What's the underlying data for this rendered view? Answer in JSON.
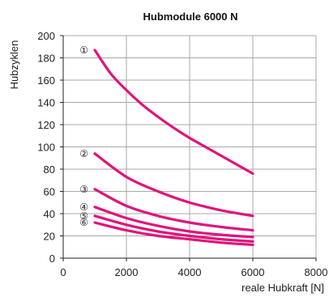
{
  "chart_data": {
    "type": "line",
    "title": "Hubmodule 6000 N",
    "xlabel": "reale Hubkraft [N]",
    "ylabel": "Hubzyklen",
    "xlim": [
      0,
      8000
    ],
    "ylim": [
      0,
      200
    ],
    "xticks": [
      0,
      2000,
      4000,
      6000,
      8000
    ],
    "yticks": [
      0,
      20,
      40,
      60,
      80,
      100,
      120,
      140,
      160,
      180,
      200
    ],
    "grid": true,
    "line_color": "#e0147c",
    "series": [
      {
        "name": "①",
        "x": [
          1000,
          1500,
          2000,
          2500,
          3000,
          3500,
          4000,
          4500,
          5000,
          5500,
          6000
        ],
        "values": [
          187,
          166,
          151,
          138,
          127,
          117,
          108,
          100,
          92,
          84,
          76
        ]
      },
      {
        "name": "②",
        "x": [
          1000,
          2000,
          3000,
          4000,
          5000,
          6000
        ],
        "values": [
          94,
          73,
          60,
          50,
          43,
          38
        ]
      },
      {
        "name": "③",
        "x": [
          1000,
          2000,
          3000,
          4000,
          5000,
          6000
        ],
        "values": [
          62,
          47,
          38,
          32,
          28,
          25
        ]
      },
      {
        "name": "④",
        "x": [
          1000,
          2000,
          3000,
          4000,
          5000,
          6000
        ],
        "values": [
          46,
          36,
          29,
          24,
          21,
          19
        ]
      },
      {
        "name": "⑤",
        "x": [
          1000,
          2000,
          3000,
          4000,
          5000,
          6000
        ],
        "values": [
          38,
          30,
          24,
          20,
          17,
          15
        ]
      },
      {
        "name": "⑥",
        "x": [
          1000,
          2000,
          3000,
          4000,
          5000,
          6000
        ],
        "values": [
          32,
          25,
          20,
          17,
          14,
          12
        ]
      }
    ]
  }
}
